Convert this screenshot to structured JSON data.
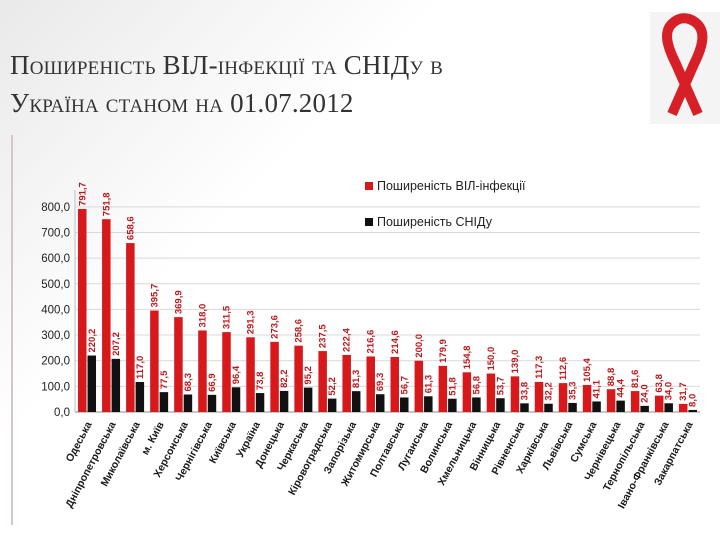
{
  "title": {
    "line1": "Поширеність ВІЛ-інфекції та СНІДу в",
    "line2": "Україна станом на 01.07.2012"
  },
  "colors": {
    "hiv": "#d7191c",
    "aids": "#111111",
    "ribbon": "#d61f26"
  },
  "chart_data": {
    "type": "bar",
    "ylim": [
      0,
      850
    ],
    "yticks": [
      "0,0",
      "100,0",
      "200,0",
      "300,0",
      "400,0",
      "500,0",
      "600,0",
      "700,0",
      "800,0"
    ],
    "ytick_values": [
      0,
      100,
      200,
      300,
      400,
      500,
      600,
      700,
      800
    ],
    "legend_position": "top-right",
    "categories": [
      "Одеська",
      "Дніпропетровська",
      "Миколаївська",
      "м. Київ",
      "Херсонська",
      "Чернігівська",
      "Київська",
      "Україна",
      "Донецька",
      "Черкаська",
      "Кіровоградська",
      "Запорізька",
      "Житомирська",
      "Полтавська",
      "Луганська",
      "Волинська",
      "Хмельницька",
      "Вінницька",
      "Рівненська",
      "Харківська",
      "Львівська",
      "Сумська",
      "Чернівецька",
      "Тернопільська",
      "Івано-Франківська",
      "Закарпатська"
    ],
    "series": [
      {
        "name": "Поширеність ВІЛ-інфекції",
        "values": [
          791.7,
          751.8,
          658.6,
          395.7,
          369.9,
          318.0,
          311.5,
          291.3,
          273.6,
          258.6,
          237.5,
          222.4,
          216.6,
          214.6,
          200.0,
          179.9,
          154.8,
          150.0,
          139.0,
          117.3,
          112.6,
          105.4,
          88.8,
          81.6,
          63.8,
          31.7
        ],
        "labels": [
          "791,7",
          "751,8",
          "658,6",
          "395,7",
          "369,9",
          "318,0",
          "311,5",
          "291,3",
          "273,6",
          "258,6",
          "237,5",
          "222,4",
          "216,6",
          "214,6",
          "200,0",
          "179,9",
          "154,8",
          "150,0",
          "139,0",
          "117,3",
          "112,6",
          "105,4",
          "88,8",
          "81,6",
          "63,8",
          "31,7"
        ]
      },
      {
        "name": "Поширеність СНІДу",
        "values": [
          220.2,
          207.2,
          117.0,
          77.5,
          68.3,
          66.9,
          96.4,
          73.8,
          82.2,
          95.2,
          52.2,
          81.3,
          69.3,
          56.7,
          61.3,
          51.8,
          56.8,
          53.7,
          33.8,
          32.2,
          35.3,
          41.1,
          44.4,
          24.0,
          34.0,
          8.0
        ],
        "labels": [
          "220,2",
          "207,2",
          "117,0",
          "77,5",
          "68,3",
          "66,9",
          "96,4",
          "73,8",
          "82,2",
          "95,2",
          "52,2",
          "81,3",
          "69,3",
          "56,7",
          "61,3",
          "51,8",
          "56,8",
          "53,7",
          "33,8",
          "32,2",
          "35,3",
          "41,1",
          "44,4",
          "24,0",
          "34,0",
          "8,0"
        ]
      }
    ]
  }
}
